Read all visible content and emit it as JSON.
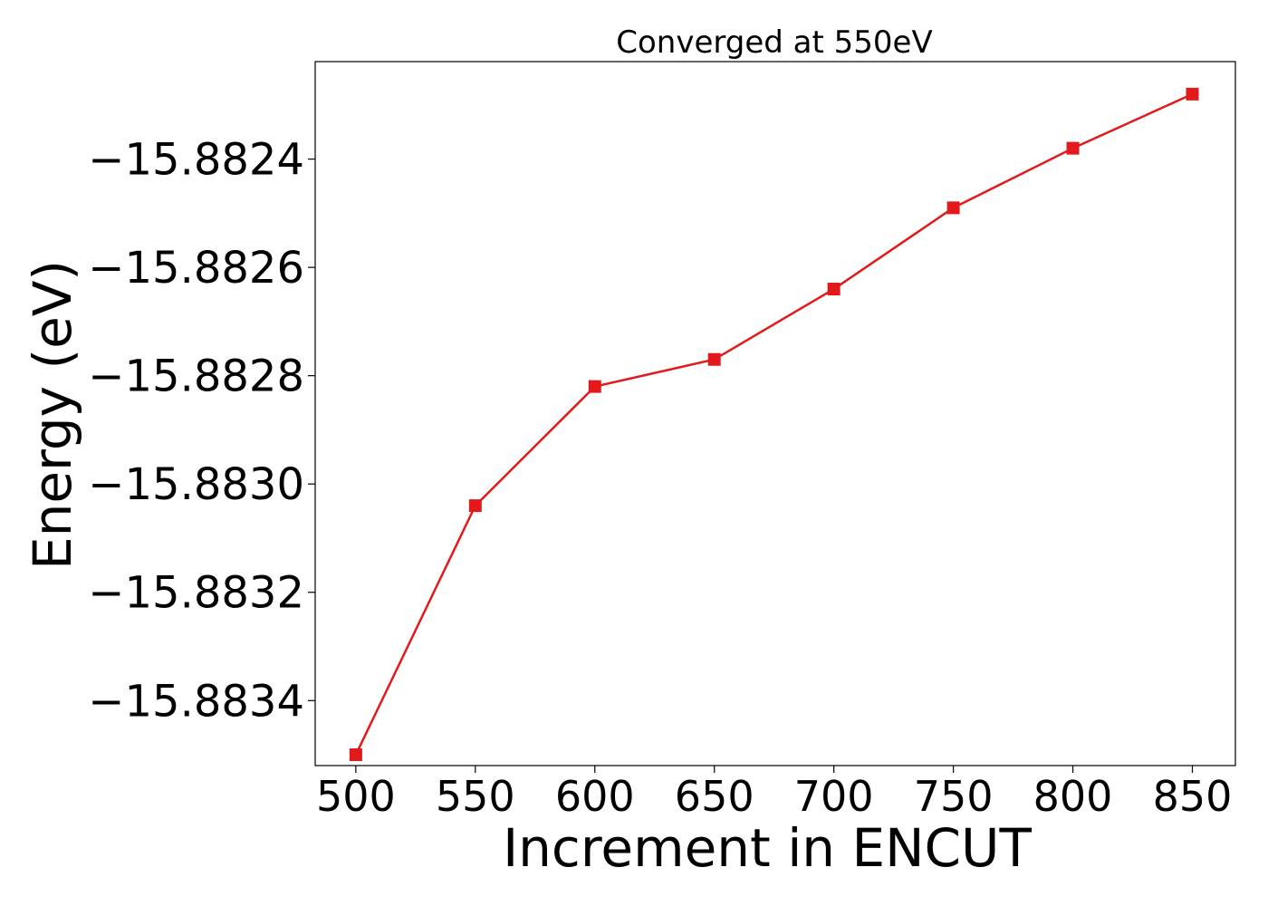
{
  "chart_data": {
    "type": "line",
    "title": "Converged at 550eV",
    "xlabel": "Increment in ENCUT",
    "ylabel": "Energy (eV)",
    "x": [
      500,
      550,
      600,
      650,
      700,
      750,
      800,
      850
    ],
    "series": [
      {
        "values": [
          -15.8835,
          -15.88304,
          -15.88282,
          -15.88277,
          -15.88264,
          -15.88249,
          -15.88238,
          -15.88228
        ],
        "color": "#e31a1c",
        "marker": "square"
      }
    ],
    "xlim": [
      483,
      868
    ],
    "ylim": [
      -15.88352,
      -15.88222
    ],
    "xticks": [
      500,
      550,
      600,
      650,
      700,
      750,
      800,
      850
    ],
    "xtick_labels": [
      "500",
      "550",
      "600",
      "650",
      "700",
      "750",
      "800",
      "850"
    ],
    "yticks": [
      -15.8834,
      -15.8832,
      -15.883,
      -15.8828,
      -15.8826,
      -15.8824
    ],
    "ytick_labels": [
      "−15.8834",
      "−15.8832",
      "−15.8830",
      "−15.8828",
      "−15.8826",
      "−15.8824"
    ],
    "grid": false,
    "legend": "none"
  }
}
